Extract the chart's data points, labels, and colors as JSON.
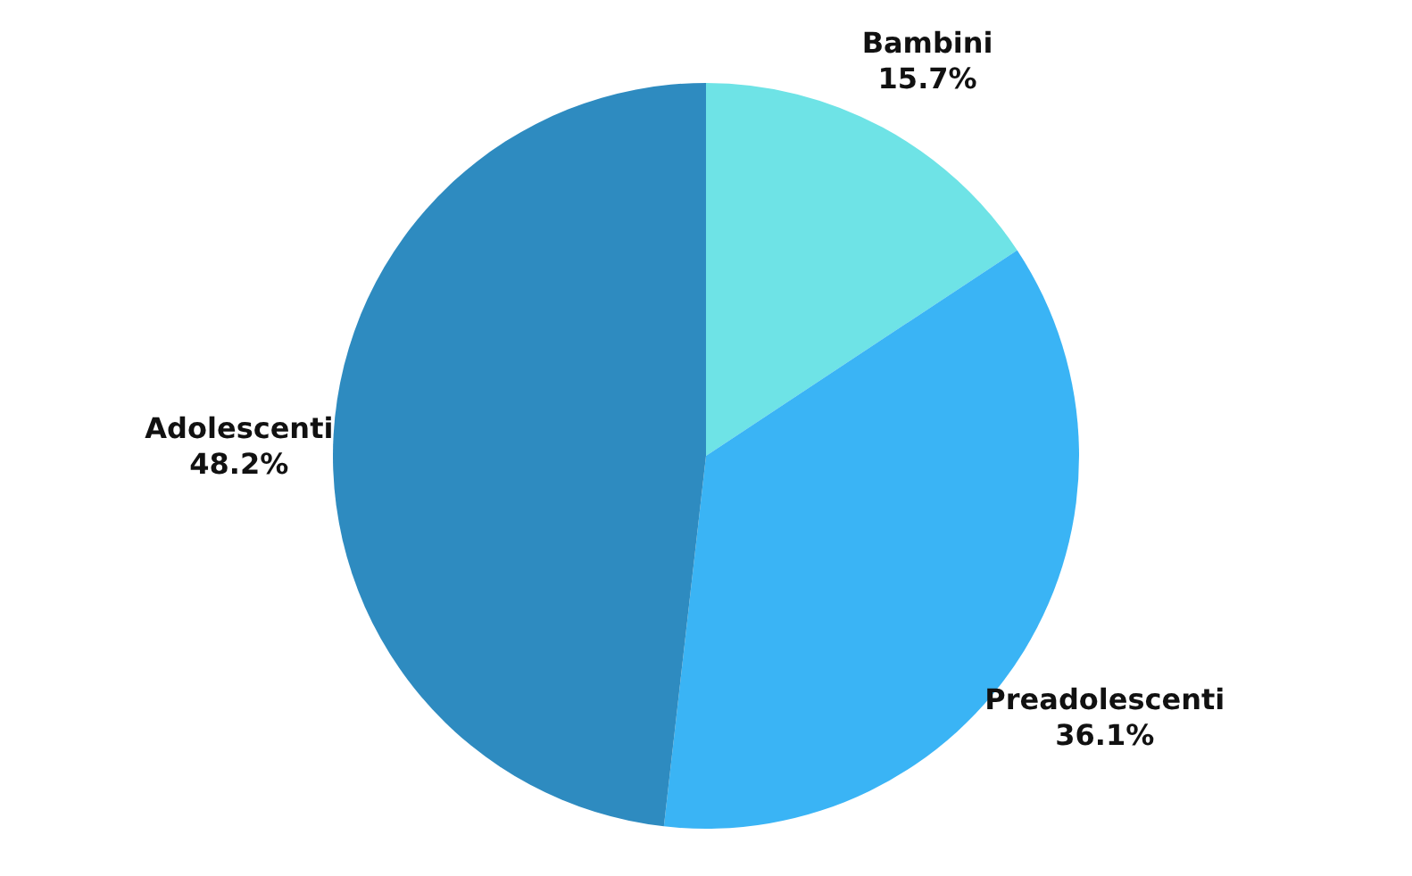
{
  "chart_data": {
    "type": "pie",
    "categories": [
      "Bambini",
      "Preadolescenti",
      "Adolescenti"
    ],
    "values": [
      15.7,
      36.1,
      48.2
    ],
    "colors": [
      "#6ee3e6",
      "#3ab4f5",
      "#2e8bc0"
    ],
    "value_labels": [
      "15.7%",
      "36.1%",
      "48.2%"
    ],
    "legend": false
  }
}
